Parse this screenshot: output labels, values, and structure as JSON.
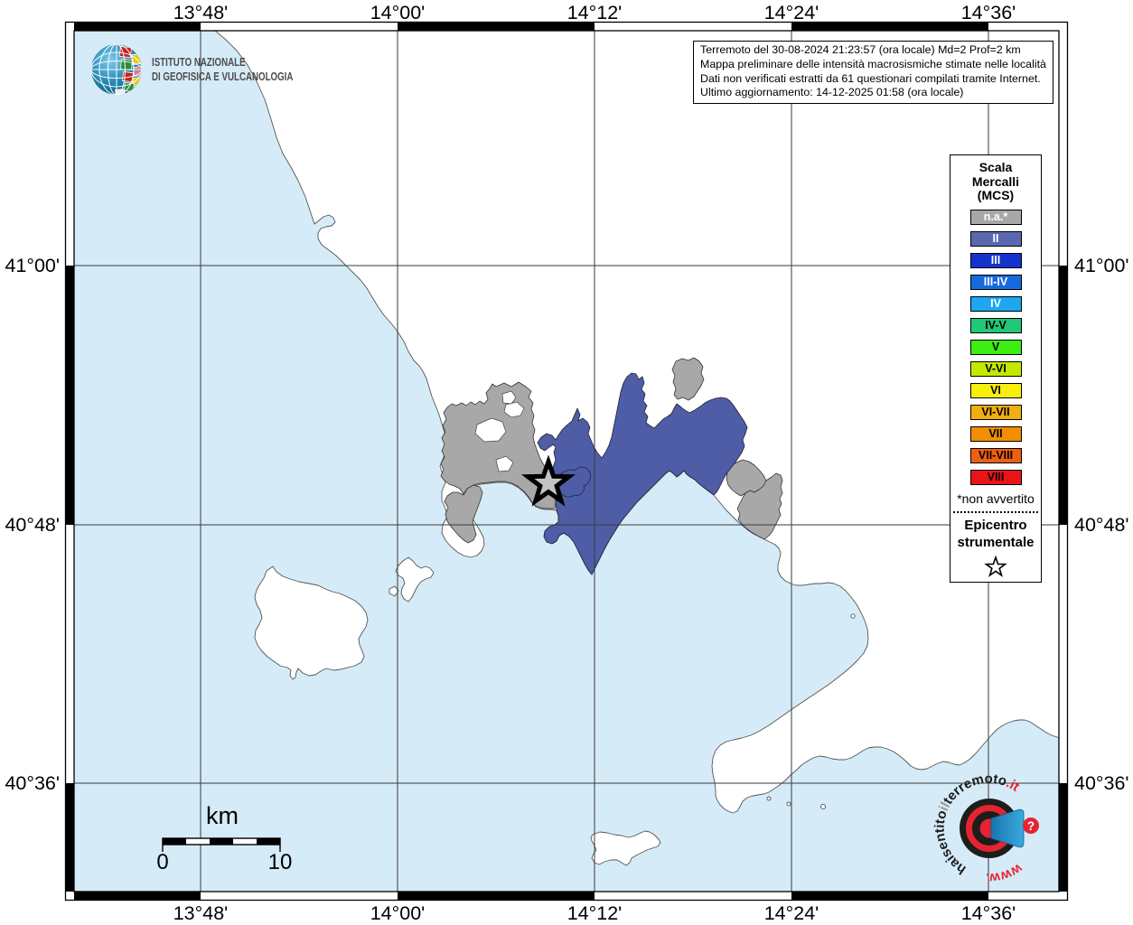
{
  "branding": {
    "line1": "ISTITUTO NAZIONALE",
    "line2": "DI GEOFISICA E VULCANOLOGIA"
  },
  "info_box": {
    "line1": "Terremoto del 30-08-2024 21:23:57 (ora locale) Md=2 Prof=2 km",
    "line2": "Mappa preliminare delle intensità macrosismiche stimate nelle località",
    "line3": "Dati non verificati estratti da 61 questionari compilati tramite Internet.",
    "line4": "Ultimo aggiornamento: 14-12-2025 01:58 (ora locale)"
  },
  "axes": {
    "top": [
      "13°48'",
      "14°00'",
      "14°12'",
      "14°24'",
      "14°36'"
    ],
    "bottom": [
      "13°48'",
      "14°00'",
      "14°12'",
      "14°24'",
      "14°36'"
    ],
    "left": [
      "41°00'",
      "40°48'",
      "40°36'"
    ],
    "right": [
      "41°00'",
      "40°48'",
      "40°36'"
    ]
  },
  "legend": {
    "title1": "Scala",
    "title2": "Mercalli",
    "title3": "(MCS)",
    "items": [
      {
        "label": "n.a.*",
        "color": "#a8a8a8",
        "text": "#ffffff"
      },
      {
        "label": "II",
        "color": "#5a68b0",
        "text": "#ffffff"
      },
      {
        "label": "III",
        "color": "#1433cc",
        "text": "#ffffff"
      },
      {
        "label": "III-IV",
        "color": "#1769dd",
        "text": "#ffffff"
      },
      {
        "label": "IV",
        "color": "#1da7f0",
        "text": "#ffffff"
      },
      {
        "label": "IV-V",
        "color": "#21c877",
        "text": "#000000"
      },
      {
        "label": "V",
        "color": "#3dee12",
        "text": "#000000"
      },
      {
        "label": "V-VI",
        "color": "#c4e800",
        "text": "#000000"
      },
      {
        "label": "VI",
        "color": "#f7ee0e",
        "text": "#000000"
      },
      {
        "label": "VI-VII",
        "color": "#f0ae10",
        "text": "#000000"
      },
      {
        "label": "VII",
        "color": "#f38e00",
        "text": "#000000"
      },
      {
        "label": "VII-VIII",
        "color": "#ec6012",
        "text": "#000000"
      },
      {
        "label": "VIII",
        "color": "#ea1417",
        "text": "#000000"
      }
    ],
    "footnote": "*non avvertito",
    "epi1": "Epicentro",
    "epi2": "strumentale"
  },
  "scalebar": {
    "unit": "km",
    "start": "0",
    "end": "10"
  },
  "watermark": {
    "arc1": "haisentito",
    "arc2": "il",
    "arc3": "terremoto",
    "arc4": ".it",
    "www": "www.",
    "question": "?"
  },
  "map": {
    "sea": "#d6ebf8",
    "land": "#ffffff",
    "na_fill": "#a8a8a8",
    "ii_fill": "#4e5da6",
    "outline": "#555555"
  }
}
